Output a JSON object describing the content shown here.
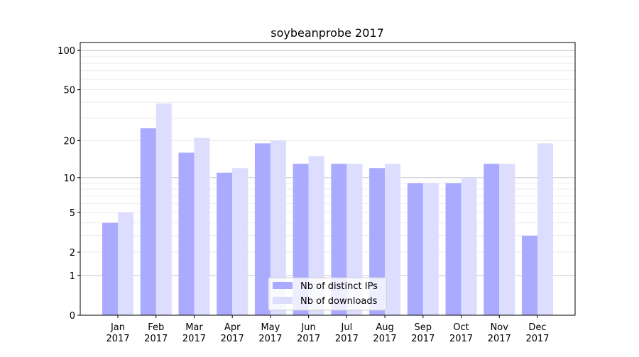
{
  "chart_data": {
    "type": "bar",
    "title": "soybeanprobe 2017",
    "xlabel": "",
    "ylabel": "",
    "yscale": "log(1+x)",
    "ylim": [
      0,
      115
    ],
    "yticks": [
      0,
      1,
      2,
      5,
      10,
      20,
      50,
      100
    ],
    "ytick_labels": [
      "0",
      "1",
      "2",
      "5",
      "10",
      "20",
      "50",
      "100"
    ],
    "grid": true,
    "legend_position": "bottom-center",
    "categories": [
      [
        "Jan",
        "2017"
      ],
      [
        "Feb",
        "2017"
      ],
      [
        "Mar",
        "2017"
      ],
      [
        "Apr",
        "2017"
      ],
      [
        "May",
        "2017"
      ],
      [
        "Jun",
        "2017"
      ],
      [
        "Jul",
        "2017"
      ],
      [
        "Aug",
        "2017"
      ],
      [
        "Sep",
        "2017"
      ],
      [
        "Oct",
        "2017"
      ],
      [
        "Nov",
        "2017"
      ],
      [
        "Dec",
        "2017"
      ]
    ],
    "series": [
      {
        "name": "Nb of distinct IPs",
        "color": "#aaaaff",
        "values": [
          4,
          25,
          16,
          11,
          19,
          13,
          13,
          12,
          9,
          9,
          13,
          3
        ]
      },
      {
        "name": "Nb of downloads",
        "color": "#ddddff",
        "values": [
          5,
          39,
          21,
          12,
          20,
          15,
          13,
          13,
          9,
          10,
          13,
          19
        ]
      }
    ]
  }
}
